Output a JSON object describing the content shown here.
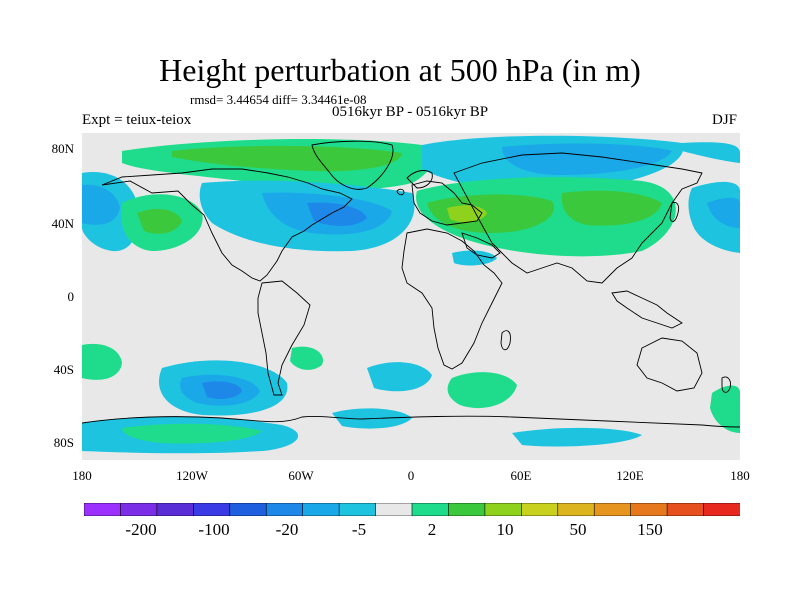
{
  "title": "Height perturbation at 500 hPa (in m)",
  "stats_line": "rmsd= 3.44654 diff= 3.34461e-08",
  "subtitle": "0516kyr BP - 0516kyr BP",
  "left_label": "Expt = teiux-teiox",
  "right_label": "DJF",
  "lat_ticks": [
    "80N",
    "40N",
    "0",
    "40S",
    "80S"
  ],
  "lon_ticks": [
    "180",
    "120W",
    "60W",
    "0",
    "60E",
    "120E",
    "180"
  ],
  "colorbar": {
    "colors": [
      "#9b30ff",
      "#7a2ee6",
      "#5a2ed6",
      "#3b3be6",
      "#1e5fe0",
      "#1e88e8",
      "#1aa8e8",
      "#1ec3e0",
      "#e8e8e8",
      "#1edc8c",
      "#3cc83c",
      "#8ed21e",
      "#c8d21e",
      "#dcb41e",
      "#e6961e",
      "#e6781e",
      "#e6501e",
      "#e6281e"
    ],
    "labels": [
      "-200",
      "-100",
      "-20",
      "-5",
      "2",
      "10",
      "50",
      "150"
    ]
  }
}
